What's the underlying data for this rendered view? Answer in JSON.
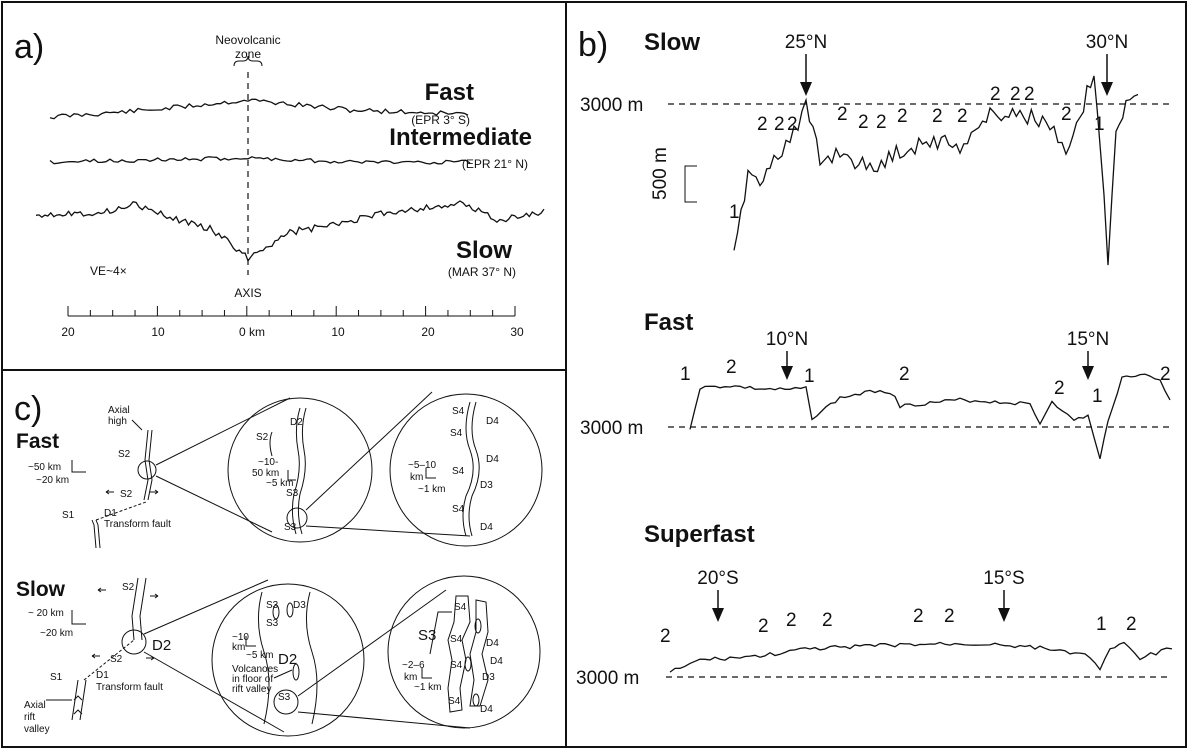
{
  "panel_a": {
    "label": "a)",
    "neovolcanic": [
      "Neovolcanic",
      "zone"
    ],
    "profiles": [
      {
        "name": "Fast",
        "site": "(EPR 3° S)"
      },
      {
        "name": "Intermediate",
        "site": "(EPR 21° N)"
      },
      {
        "name": "Slow",
        "site": "(MAR 37° N)"
      }
    ],
    "ve": "VE~4×",
    "axis_label": "AXIS",
    "ticks": [
      "20",
      "10",
      "0 km",
      "10",
      "20",
      "30"
    ]
  },
  "panel_b": {
    "label": "b)",
    "slow": {
      "title": "Slow",
      "arrows": [
        "25°N",
        "30°N"
      ],
      "depth": "3000 m",
      "scale": "500 m",
      "markers": [
        "1",
        "2",
        "2",
        "2",
        "2",
        "2",
        "2",
        "2",
        "2",
        "2",
        "2",
        "2",
        "2",
        "2",
        "1"
      ]
    },
    "fast": {
      "title": "Fast",
      "arrows": [
        "10°N",
        "15°N"
      ],
      "depth": "3000 m",
      "markers": [
        "1",
        "2",
        "1",
        "2",
        "2",
        "1",
        "2"
      ]
    },
    "superfast": {
      "title": "Superfast",
      "arrows": [
        "20°S",
        "15°S"
      ],
      "depth": "3000 m",
      "markers": [
        "2",
        "2",
        "2",
        "2",
        "2",
        "2",
        "1",
        "2"
      ]
    }
  },
  "panel_c": {
    "label": "c)",
    "fast": {
      "title": "Fast",
      "axial_high": [
        "Axial",
        "high"
      ],
      "scale_a": [
        "~50 km",
        "~20 km"
      ],
      "labels": [
        "S2",
        "S2",
        "S1",
        "D1"
      ],
      "transform": "Transform fault",
      "zoom1": {
        "labels": [
          "S2",
          "D2",
          "S3",
          "S3"
        ],
        "scale": [
          "~10-",
          "50 km",
          "~5 km"
        ]
      },
      "zoom2": {
        "labels": [
          "S4",
          "D4",
          "S4",
          "D4",
          "S4",
          "D3",
          "S4",
          "D4"
        ],
        "scale": [
          "~5–10",
          "km",
          "~1 km"
        ]
      }
    },
    "slow": {
      "title": "Slow",
      "labels": [
        "S2",
        "S2",
        "S1",
        "D1",
        "D2"
      ],
      "scale_a": [
        "~ 20 km",
        "~20 km"
      ],
      "transform": "Transform fault",
      "rift": [
        "Axial",
        "rift",
        "valley"
      ],
      "zoom1": {
        "labels": [
          "S3",
          "D3",
          "S3",
          "D2",
          "S3"
        ],
        "scale": [
          "~10",
          "km",
          "~5 km"
        ],
        "volcanoes": [
          "Volcanoes",
          "in floor of",
          "rift valley"
        ]
      },
      "zoom2": {
        "labels": [
          "S3",
          "S4",
          "S4",
          "D4",
          "S4",
          "D4",
          "D3",
          "S4",
          "D4"
        ],
        "scale": [
          "~2–6",
          "km",
          "~1 km"
        ]
      }
    }
  }
}
